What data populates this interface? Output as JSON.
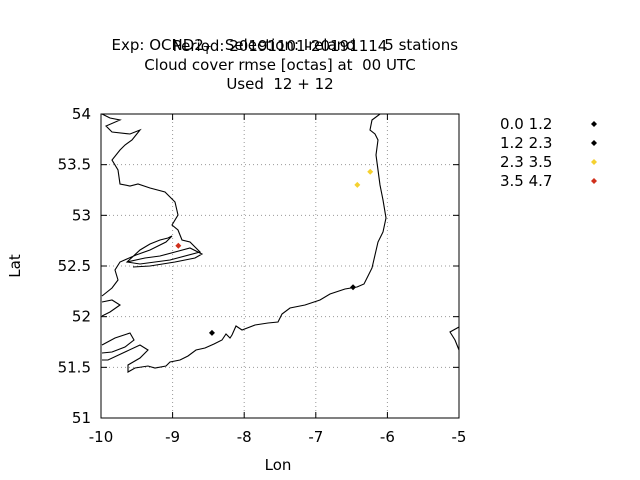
{
  "chart_data": {
    "type": "scatter",
    "title_lines": [
      "Exp: OCND2",
      "Period: 20191101-20191114",
      "Cloud cover rmse [octas] at  00 UTC",
      "Used  12 + 12"
    ],
    "title_subscript": "T",
    "title_rest": "Selection: Ireland      5 stations",
    "xlabel": "Lon",
    "ylabel": "Lat",
    "xlim": [
      -10,
      -5
    ],
    "ylim": [
      51,
      54
    ],
    "x_ticks": [
      -10,
      -9,
      -8,
      -7,
      -6,
      -5
    ],
    "y_ticks": [
      51,
      51.5,
      52,
      52.5,
      53,
      53.5,
      54
    ],
    "x_tick_labels": [
      "-10",
      "-9",
      "-8",
      "-7",
      "-6",
      "-5"
    ],
    "y_tick_labels": [
      "51",
      "51.5",
      "52",
      "52.5",
      "53",
      "53.5",
      "54"
    ],
    "grid": true,
    "legend_position": "outside-right",
    "series": [
      {
        "name": "0.0 1.2",
        "color": "#000000",
        "points": []
      },
      {
        "name": "1.2 2.3",
        "color": "#000000",
        "points": [
          [
            -8.45,
            51.84
          ],
          [
            -6.48,
            52.29
          ]
        ]
      },
      {
        "name": "2.3 3.5",
        "color": "#f5d130",
        "points": [
          [
            -6.42,
            53.3
          ],
          [
            -6.24,
            53.43
          ]
        ]
      },
      {
        "name": "3.5 4.7",
        "color": "#d0301c",
        "points": [
          [
            -8.92,
            52.7
          ]
        ]
      }
    ]
  }
}
